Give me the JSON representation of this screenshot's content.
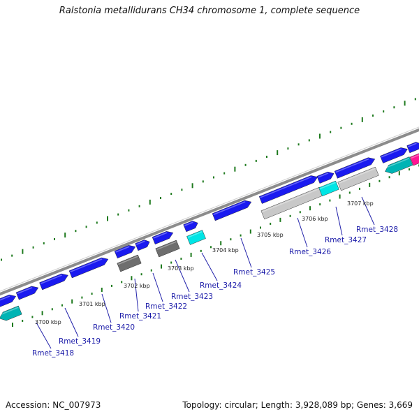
{
  "title": "Ralstonia metallidurans CH34 chromosome 1, complete sequence",
  "footer": {
    "accession": "Accession: NC_007973",
    "summary": "Topology: circular; Length: 3,928,089 bp; Genes: 3,669"
  },
  "colors": {
    "backbone": "#8c8c8c",
    "gene_forward": "#1a1af0",
    "gene_reverse_cyan": "#00e5e5",
    "gene_dark_cyan": "#00b4b4",
    "gene_gray": "#6e6e6e",
    "gene_lightgray": "#c8c8c8",
    "gene_magenta": "#ff1493",
    "gc_dots": "#1e7a1e",
    "gene_label": "#1a1aa8",
    "leader_line": "#2222aa"
  },
  "tick_labels": [
    "3700 kbp",
    "3701 kbp",
    "3702 kbp",
    "3703 kbp",
    "3704 kbp",
    "3705 kbp",
    "3706 kbp",
    "3707 kbp"
  ],
  "gene_labels": [
    "Rmet_3418",
    "Rmet_3419",
    "Rmet_3420",
    "Rmet_3421",
    "Rmet_3422",
    "Rmet_3423",
    "Rmet_3424",
    "Rmet_3425",
    "Rmet_3426",
    "Rmet_3427",
    "Rmet_3428"
  ]
}
